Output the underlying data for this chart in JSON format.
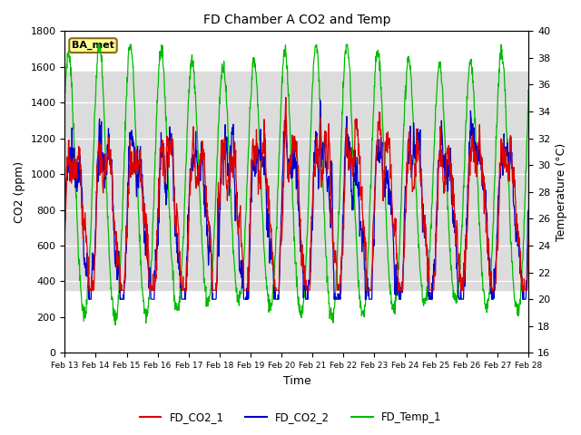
{
  "title": "FD Chamber A CO2 and Temp",
  "xlabel": "Time",
  "ylabel_left": "CO2 (ppm)",
  "ylabel_right": "Temperature (°C)",
  "co2_ylim": [
    0,
    1800
  ],
  "temp_ylim": [
    16,
    40
  ],
  "co2_yticks": [
    0,
    200,
    400,
    600,
    800,
    1000,
    1200,
    1400,
    1600,
    1800
  ],
  "temp_yticks": [
    16,
    18,
    20,
    22,
    24,
    26,
    28,
    30,
    32,
    34,
    36,
    38,
    40
  ],
  "xticklabels": [
    "Feb 13",
    "Feb 14",
    "Feb 15",
    "Feb 16",
    "Feb 17",
    "Feb 18",
    "Feb 19",
    "Feb 20",
    "Feb 21",
    "Feb 22",
    "Feb 23",
    "Feb 24",
    "Feb 25",
    "Feb 26",
    "Feb 27",
    "Feb 28"
  ],
  "colors": {
    "co2_1": "#DD0000",
    "co2_2": "#0000CC",
    "temp": "#00BB00",
    "shading": "#DCDCDC"
  },
  "label_box": "BA_met",
  "legend": [
    "FD_CO2_1",
    "FD_CO2_2",
    "FD_Temp_1"
  ],
  "shading_co2_low": 350,
  "shading_co2_high": 1575,
  "n_points": 1500
}
